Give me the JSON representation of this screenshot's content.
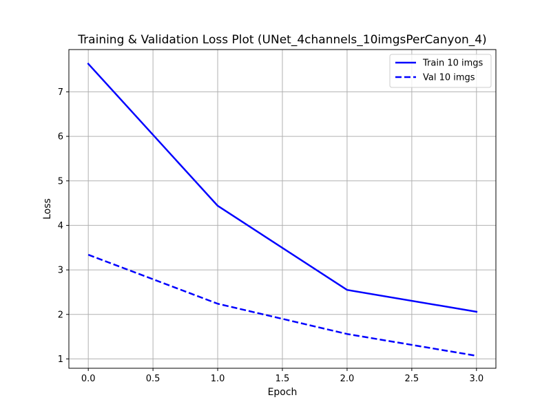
{
  "chart_data": {
    "type": "line",
    "title": "Training & Validation Loss Plot (UNet_4channels_10imgsPerCanyon_4)",
    "xlabel": "Epoch",
    "ylabel": "Loss",
    "x": [
      0,
      1,
      2,
      3
    ],
    "xlim": [
      -0.15,
      3.15
    ],
    "ylim": [
      0.79,
      7.95
    ],
    "xticks": [
      0.0,
      0.5,
      1.0,
      1.5,
      2.0,
      2.5,
      3.0
    ],
    "xtick_labels": [
      "0.0",
      "0.5",
      "1.0",
      "1.5",
      "2.0",
      "2.5",
      "3.0"
    ],
    "yticks": [
      1,
      2,
      3,
      4,
      5,
      6,
      7
    ],
    "ytick_labels": [
      "1",
      "2",
      "3",
      "4",
      "5",
      "6",
      "7"
    ],
    "grid": true,
    "legend_position": "top-right",
    "series": [
      {
        "name": "Train 10 imgs",
        "values": [
          7.63,
          4.44,
          2.55,
          2.06
        ],
        "color": "#0000ff",
        "style": "solid"
      },
      {
        "name": "Val 10 imgs",
        "values": [
          3.34,
          2.24,
          1.56,
          1.07
        ],
        "color": "#0000ff",
        "style": "dashed"
      }
    ]
  }
}
